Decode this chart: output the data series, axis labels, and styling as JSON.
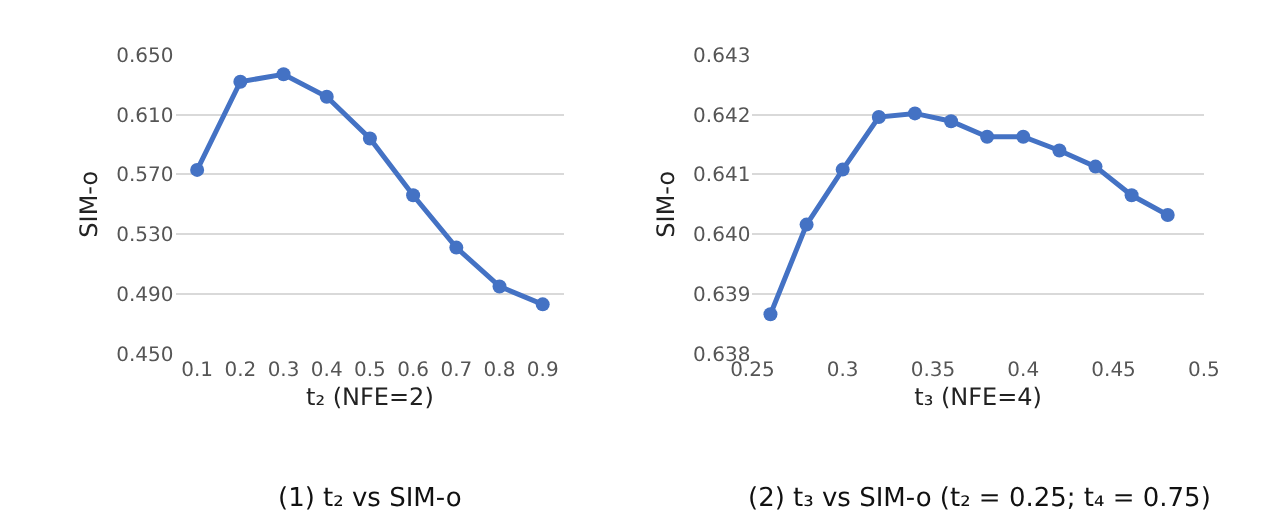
{
  "chart_data": [
    {
      "type": "line",
      "title": "(1) t₂ vs SIM-o",
      "xlabel": "t₂ (NFE=2)",
      "ylabel": "SIM-o",
      "categories": [
        "0.1",
        "0.2",
        "0.3",
        "0.4",
        "0.5",
        "0.6",
        "0.7",
        "0.8",
        "0.9"
      ],
      "series": [
        {
          "color": "#4472c4",
          "values": [
            0.573,
            0.632,
            0.637,
            0.622,
            0.594,
            0.556,
            0.521,
            0.495,
            0.483
          ]
        }
      ],
      "ylim": [
        0.45,
        0.65
      ],
      "yticks": [
        {
          "value": 0.45,
          "label": "0.450"
        },
        {
          "value": 0.49,
          "label": "0.490"
        },
        {
          "value": 0.53,
          "label": "0.530"
        },
        {
          "value": 0.57,
          "label": "0.570"
        },
        {
          "value": 0.61,
          "label": "0.610"
        },
        {
          "value": 0.65,
          "label": "0.650"
        }
      ],
      "grid": "y",
      "marker": "circle"
    },
    {
      "type": "line",
      "title": "(2) t₃ vs SIM-o (t₂ = 0.25; t₄ = 0.75)",
      "xlabel": "t₃ (NFE=4)",
      "ylabel": "SIM-o",
      "x": [
        0.26,
        0.28,
        0.3,
        0.32,
        0.34,
        0.36,
        0.38,
        0.4,
        0.42,
        0.44,
        0.46,
        0.48
      ],
      "series": [
        {
          "color": "#4472c4",
          "values": [
            0.63866,
            0.64016,
            0.64108,
            0.64196,
            0.64202,
            0.64189,
            0.64163,
            0.64163,
            0.6414,
            0.64113,
            0.64065,
            0.64032
          ]
        }
      ],
      "xlim": [
        0.25,
        0.5
      ],
      "xticks": [
        0.25,
        0.3,
        0.35,
        0.4,
        0.45,
        0.5
      ],
      "ylim": [
        0.638,
        0.643
      ],
      "yticks": [
        0.638,
        0.639,
        {
          "value": 0.64,
          "label": "0.640"
        },
        0.641,
        0.642,
        0.643
      ],
      "grid": "y",
      "marker": "circle"
    }
  ]
}
